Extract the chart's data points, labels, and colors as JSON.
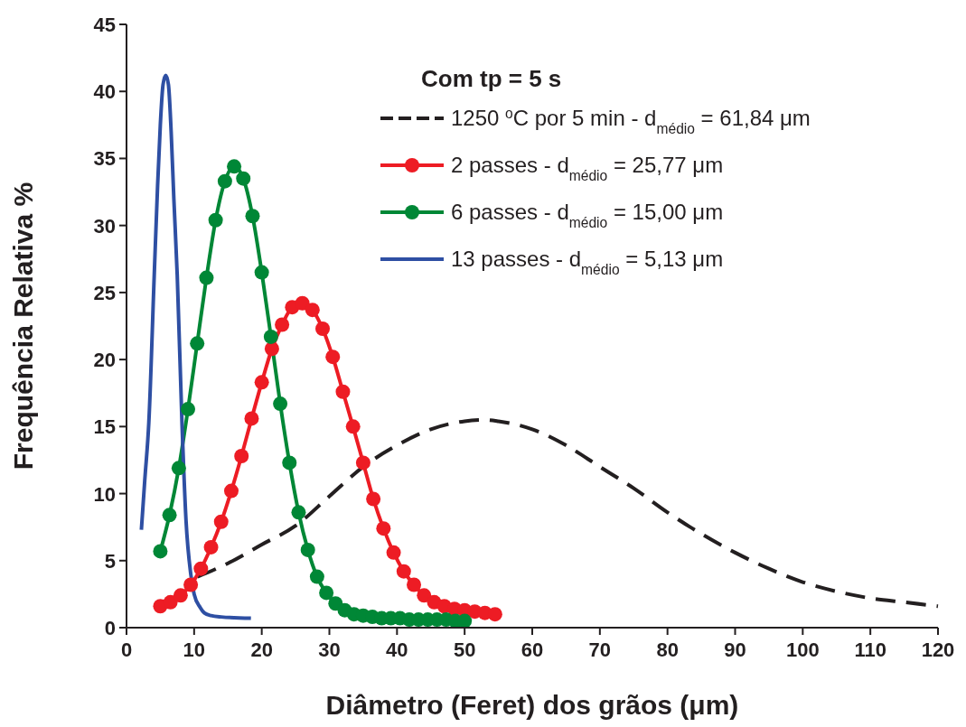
{
  "chart_data": {
    "type": "line",
    "xlabel": "Diâmetro (Feret) dos grãos (μm)",
    "ylabel": "Frequência Relativa %",
    "legend_title": "Com tp = 5 s",
    "legend": "top right",
    "grid": false,
    "xlim": [
      0,
      120
    ],
    "xticks": [
      0,
      10,
      20,
      30,
      40,
      50,
      60,
      70,
      80,
      90,
      100,
      110,
      120
    ],
    "ylim": [
      0,
      45
    ],
    "yticks": [
      0,
      5,
      10,
      15,
      20,
      25,
      30,
      35,
      40,
      45
    ],
    "series": [
      {
        "name": "1250 $^{o}$C por 5 min -  d$_{médio}$ = 61,84 μm",
        "color": "#231f20",
        "line_style": "dashed",
        "marker": "none",
        "x": [
          10.5,
          15,
          20,
          25,
          30,
          35,
          40,
          45,
          50,
          53,
          55,
          60,
          65,
          70,
          75,
          80,
          85,
          90,
          95,
          100,
          105,
          110,
          115,
          120
        ],
        "values": [
          3.8,
          4.8,
          6.2,
          7.6,
          9.8,
          12,
          13.6,
          14.8,
          15.4,
          15.5,
          15.4,
          14.8,
          13.6,
          12,
          10.4,
          8.6,
          7,
          5.6,
          4.4,
          3.4,
          2.7,
          2.2,
          1.9,
          1.6
        ]
      },
      {
        "name": "2 passes - d$_{médio}$ = 25,77 μm",
        "color": "#ed1c24",
        "line_style": "solid",
        "marker": "circle",
        "x": [
          5,
          6.5,
          8,
          9.5,
          11,
          12.5,
          14,
          15.5,
          17,
          18.5,
          20,
          21.5,
          23,
          24.5,
          26,
          27.5,
          29,
          30.5,
          32,
          33.5,
          35,
          36.5,
          38,
          39.5,
          41,
          42.5,
          44,
          45.5,
          47,
          48.5,
          50,
          51.5,
          53,
          54.5
        ],
        "values": [
          1.6,
          1.9,
          2.4,
          3.2,
          4.4,
          6.0,
          7.9,
          10.2,
          12.8,
          15.6,
          18.3,
          20.8,
          22.6,
          23.9,
          24.2,
          23.7,
          22.3,
          20.2,
          17.6,
          15.0,
          12.3,
          9.6,
          7.4,
          5.6,
          4.2,
          3.2,
          2.4,
          1.9,
          1.6,
          1.4,
          1.3,
          1.2,
          1.1,
          1.0
        ]
      },
      {
        "name": "6 passes - d$_{médio}$ = 15,00 μm",
        "color": "#008736",
        "line_style": "solid",
        "marker": "circle",
        "x": [
          5,
          6.36,
          7.73,
          9.09,
          10.45,
          11.82,
          13.18,
          14.55,
          15.91,
          17.27,
          18.64,
          20,
          21.36,
          22.73,
          24.09,
          25.45,
          26.82,
          28.18,
          29.55,
          30.91,
          32.27,
          33.64,
          35,
          36.36,
          37.73,
          39.09,
          40.45,
          41.82,
          43.18,
          44.55,
          45.91,
          47.27,
          48.64,
          50
        ],
        "values": [
          5.7,
          8.4,
          11.9,
          16.3,
          21.2,
          26.1,
          30.4,
          33.3,
          34.4,
          33.5,
          30.7,
          26.5,
          21.7,
          16.7,
          12.3,
          8.6,
          5.8,
          3.8,
          2.6,
          1.8,
          1.3,
          1.0,
          0.9,
          0.8,
          0.7,
          0.7,
          0.7,
          0.6,
          0.6,
          0.6,
          0.6,
          0.6,
          0.5,
          0.5
        ]
      },
      {
        "name": "13 passes - d$_{médio}$ = 5,13 μm",
        "color": "#2e4fa3",
        "line_style": "solid",
        "marker": "none",
        "x": [
          2.2,
          2.7,
          3.3,
          4.1,
          4.6,
          5,
          5.4,
          5.8,
          6.2,
          6.6,
          7,
          7.5,
          8.2,
          8.8,
          9.5,
          10,
          10.9,
          11.5,
          12.5,
          14,
          18.4
        ],
        "values": [
          7.3,
          11,
          15.3,
          26.3,
          33,
          37.5,
          40.5,
          41.2,
          40.5,
          37,
          32,
          26.3,
          15.3,
          8,
          4,
          2.5,
          1.5,
          1.1,
          0.9,
          0.8,
          0.7
        ]
      }
    ]
  }
}
